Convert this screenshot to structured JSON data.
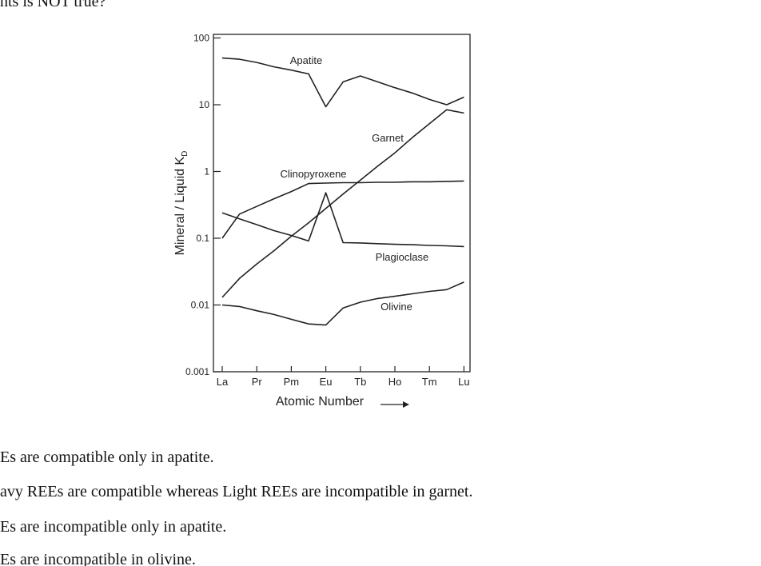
{
  "question_text": "nts is NOT true?",
  "chart_data": {
    "type": "line",
    "log_y": true,
    "x_label": "Atomic Number",
    "y_label": "Mineral / Liquid K",
    "y_label_subscript": "D",
    "categories": [
      "La",
      null,
      "Pr",
      null,
      "Pm",
      null,
      "Eu",
      null,
      "Tb",
      null,
      "Ho",
      null,
      "Tm",
      null,
      "Lu"
    ],
    "ylim": [
      0.001,
      100
    ],
    "yticks": [
      0.001,
      0.01,
      0.1,
      1,
      10,
      100
    ],
    "series": [
      {
        "name": "Apatite",
        "color": "#222222",
        "values": [
          50,
          48,
          43,
          37,
          33,
          29,
          9.3,
          22,
          27,
          22,
          18,
          15,
          12,
          10,
          13
        ]
      },
      {
        "name": "Garnet",
        "color": "#222222",
        "values": [
          0.013,
          0.025,
          0.041,
          0.065,
          0.107,
          0.17,
          0.28,
          0.46,
          0.74,
          1.2,
          1.9,
          3.2,
          5.2,
          8.4,
          7.5
        ]
      },
      {
        "name": "Clinopyroxene",
        "color": "#222222",
        "values": [
          0.1,
          0.23,
          0.3,
          0.39,
          0.5,
          0.66,
          0.67,
          0.68,
          0.68,
          0.69,
          0.69,
          0.7,
          0.7,
          0.71,
          0.72
        ]
      },
      {
        "name": "Plagioclase",
        "color": "#222222",
        "values": [
          0.24,
          0.195,
          0.16,
          0.13,
          0.11,
          0.091,
          0.48,
          0.086,
          0.085,
          0.083,
          0.081,
          0.08,
          0.078,
          0.077,
          0.075
        ]
      },
      {
        "name": "Olivine",
        "color": "#222222",
        "values": [
          0.01,
          0.0095,
          0.0082,
          0.0072,
          0.0061,
          0.0052,
          0.005,
          0.009,
          0.011,
          0.0125,
          0.0135,
          0.0147,
          0.016,
          0.017,
          0.022
        ]
      }
    ]
  },
  "options": [
    "Es are compatible only in apatite.",
    "avy REEs are compatible whereas Light REEs are incompatible in garnet.",
    "Es are incompatible only in apatite.",
    "Es are incompatible in olivine."
  ]
}
